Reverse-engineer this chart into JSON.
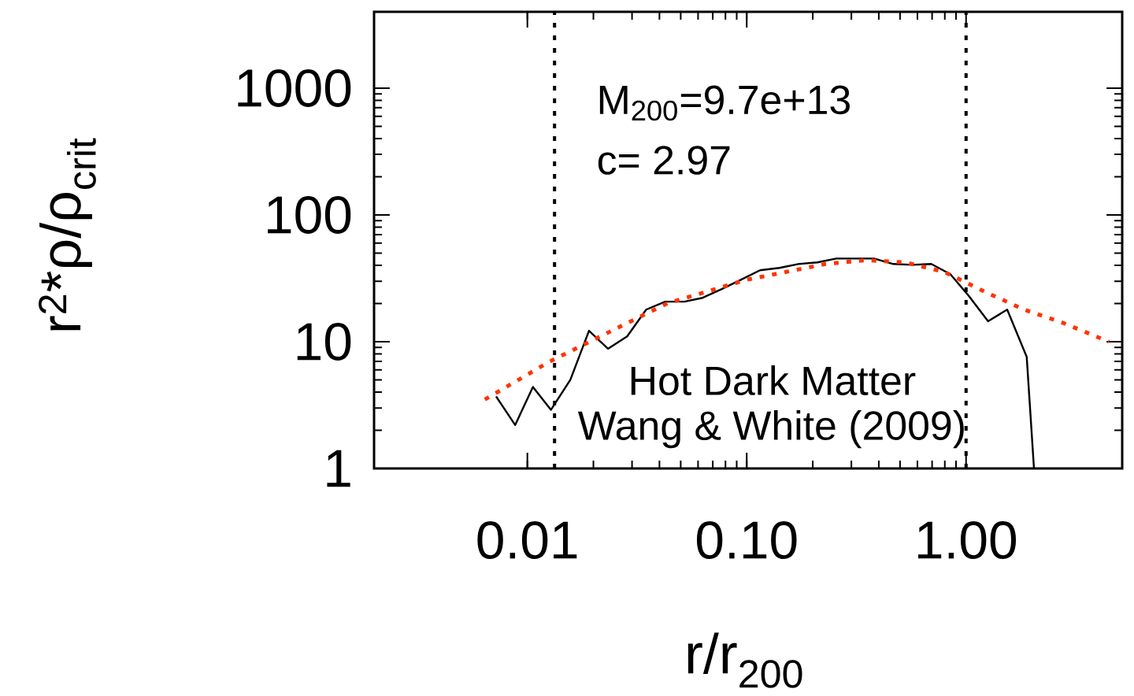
{
  "chart_data": {
    "type": "line",
    "log": "xy",
    "xlabel": "r/r$_{200}$",
    "ylabel": "r$^{2}$*ρ/ρ$_{crit}$",
    "xlim": [
      0.002,
      5.15
    ],
    "ylim": [
      1,
      4000
    ],
    "xticks": [
      {
        "value": 0.01,
        "label": "0.01"
      },
      {
        "value": 0.1,
        "label": "0.10"
      },
      {
        "value": 1,
        "label": "1.00"
      }
    ],
    "yticks": [
      1,
      10,
      100,
      1000
    ],
    "series": [
      {
        "color": "#000000",
        "line_style": "solid",
        "x": [
          0.0072,
          0.0088,
          0.0106,
          0.0128,
          0.0157,
          0.0191,
          0.0233,
          0.0285,
          0.0348,
          0.0425,
          0.052,
          0.063,
          0.077,
          0.094,
          0.115,
          0.141,
          0.172,
          0.21,
          0.256,
          0.313,
          0.381,
          0.466,
          0.569,
          0.694,
          0.848,
          1.03,
          1.26,
          1.54,
          1.89,
          2.04
        ],
        "values": [
          3.7,
          2.2,
          4.4,
          2.9,
          5.0,
          12.2,
          8.8,
          11.0,
          17.9,
          20.7,
          20.7,
          22.2,
          26.0,
          30.8,
          36.6,
          38.2,
          41.0,
          42.2,
          45.3,
          45.3,
          45.3,
          41.0,
          40.4,
          41.0,
          34.1,
          22.9,
          14.5,
          17.9,
          7.6,
          1
        ]
      },
      {
        "color": "#ff3300",
        "line_style": "dotted",
        "x": [
          0.0064,
          0.0125,
          0.0287,
          0.0436,
          0.1,
          0.229,
          0.35,
          0.528,
          0.797,
          1.21,
          1.84,
          2.76,
          4.48
        ],
        "values": [
          3.5,
          6.9,
          14.1,
          20.1,
          30.8,
          41.0,
          44.0,
          42.2,
          35.5,
          24.9,
          17.9,
          14.1,
          10
        ]
      }
    ],
    "ref_lines": [
      {
        "axis": "x",
        "value": 0.0133,
        "line_style": "dotted",
        "color": "#000000"
      },
      {
        "axis": "x",
        "value": 1.0,
        "line_style": "dotted",
        "color": "#000000"
      }
    ],
    "annotations": [
      "M$_{200}$=9.7e+13",
      "c=  2.97",
      "Hot Dark Matter",
      "Wang & White (2009)"
    ]
  }
}
